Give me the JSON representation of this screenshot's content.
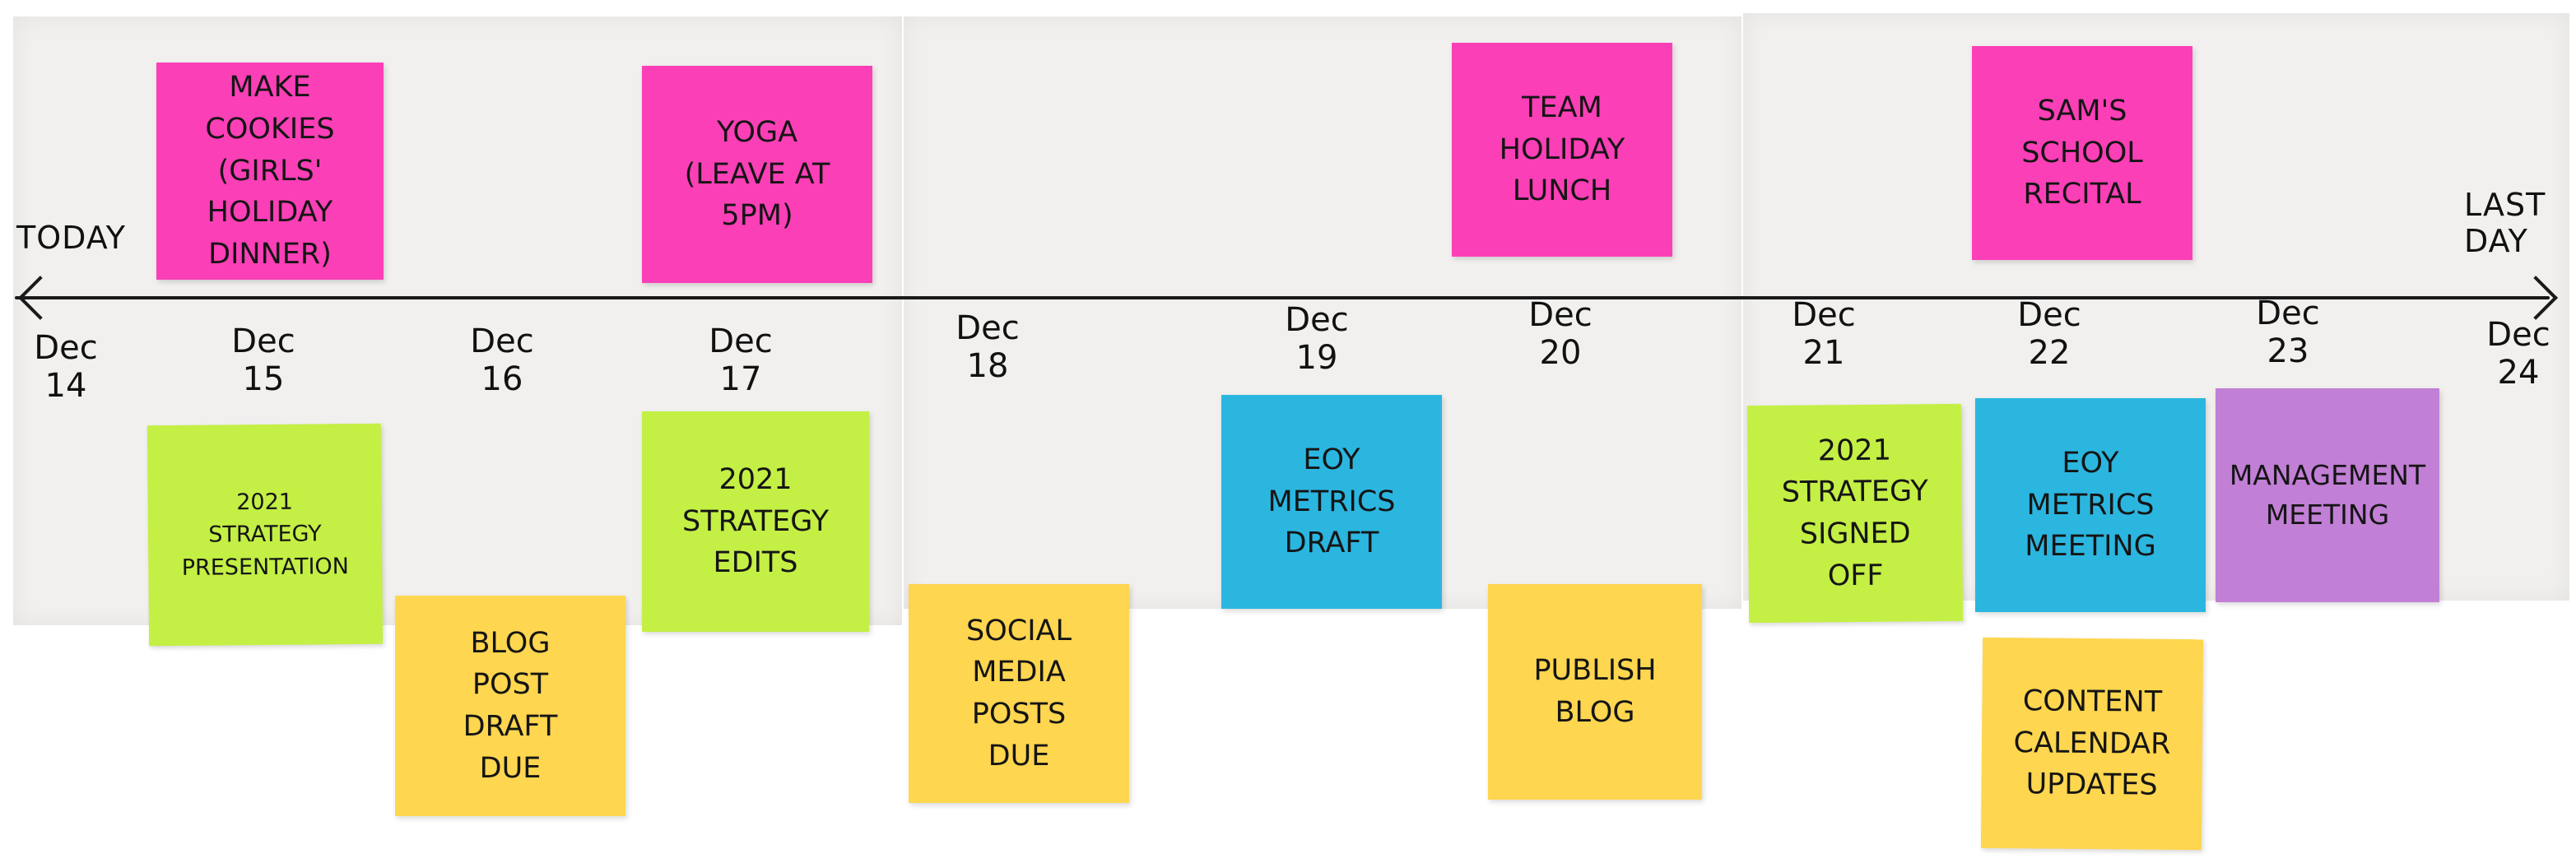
{
  "timeline": {
    "start_label": "Today",
    "end_label": [
      "Last",
      "Day"
    ],
    "dates": [
      {
        "month": "Dec",
        "day": "14"
      },
      {
        "month": "Dec",
        "day": "15"
      },
      {
        "month": "Dec",
        "day": "16"
      },
      {
        "month": "Dec",
        "day": "17"
      },
      {
        "month": "Dec",
        "day": "18"
      },
      {
        "month": "Dec",
        "day": "19"
      },
      {
        "month": "Dec",
        "day": "20"
      },
      {
        "month": "Dec",
        "day": "21"
      },
      {
        "month": "Dec",
        "day": "22"
      },
      {
        "month": "Dec",
        "day": "23"
      },
      {
        "month": "Dec",
        "day": "24"
      }
    ]
  },
  "colors": {
    "pink": "#fb3fb7",
    "green": "#c4ef45",
    "yellow": "#ffd64f",
    "blue": "#2bb6e0",
    "purple": "#c27fd6",
    "paper": "#f1f0ee"
  },
  "notes": [
    {
      "id": "make-cookies",
      "color": "pink",
      "date": "Dec 15",
      "lines": [
        "Make",
        "Cookies",
        "(Girls'",
        "Holiday",
        "Dinner)"
      ]
    },
    {
      "id": "yoga",
      "color": "pink",
      "date": "Dec 17",
      "lines": [
        "Yoga",
        "(Leave at",
        "5pm)"
      ]
    },
    {
      "id": "team-holiday-lunch",
      "color": "pink",
      "date": "Dec 20",
      "lines": [
        "Team",
        "Holiday",
        "Lunch"
      ]
    },
    {
      "id": "sams-school-recital",
      "color": "pink",
      "date": "Dec 22",
      "lines": [
        "Sam's",
        "School",
        "Recital"
      ]
    },
    {
      "id": "strategy-presentation",
      "color": "green",
      "date": "Dec 15",
      "lines": [
        "2021",
        "Strategy",
        "Presentation"
      ]
    },
    {
      "id": "blog-post-draft-due",
      "color": "yellow",
      "date": "Dec 16",
      "lines": [
        "Blog",
        "Post",
        "Draft",
        "Due"
      ]
    },
    {
      "id": "strategy-edits",
      "color": "green",
      "date": "Dec 17",
      "lines": [
        "2021",
        "Strategy",
        "Edits"
      ]
    },
    {
      "id": "social-media-posts-due",
      "color": "yellow",
      "date": "Dec 18",
      "lines": [
        "Social",
        "Media",
        "Posts",
        "Due"
      ]
    },
    {
      "id": "eoy-metrics-draft",
      "color": "blue",
      "date": "Dec 19",
      "lines": [
        "EOY",
        "Metrics",
        "Draft"
      ]
    },
    {
      "id": "publish-blog",
      "color": "yellow",
      "date": "Dec 20",
      "lines": [
        "Publish",
        "Blog"
      ]
    },
    {
      "id": "strategy-signed-off",
      "color": "green",
      "date": "Dec 21",
      "lines": [
        "2021",
        "Strategy",
        "Signed",
        "Off"
      ]
    },
    {
      "id": "eoy-metrics-meeting",
      "color": "blue",
      "date": "Dec 22",
      "lines": [
        "EOY",
        "Metrics",
        "Meeting"
      ]
    },
    {
      "id": "management-meeting",
      "color": "purple",
      "date": "Dec 23",
      "lines": [
        "Management",
        "Meeting"
      ]
    },
    {
      "id": "content-calendar-updates",
      "color": "yellow",
      "date": "Dec 22",
      "lines": [
        "Content",
        "Calendar",
        "Updates"
      ]
    }
  ]
}
